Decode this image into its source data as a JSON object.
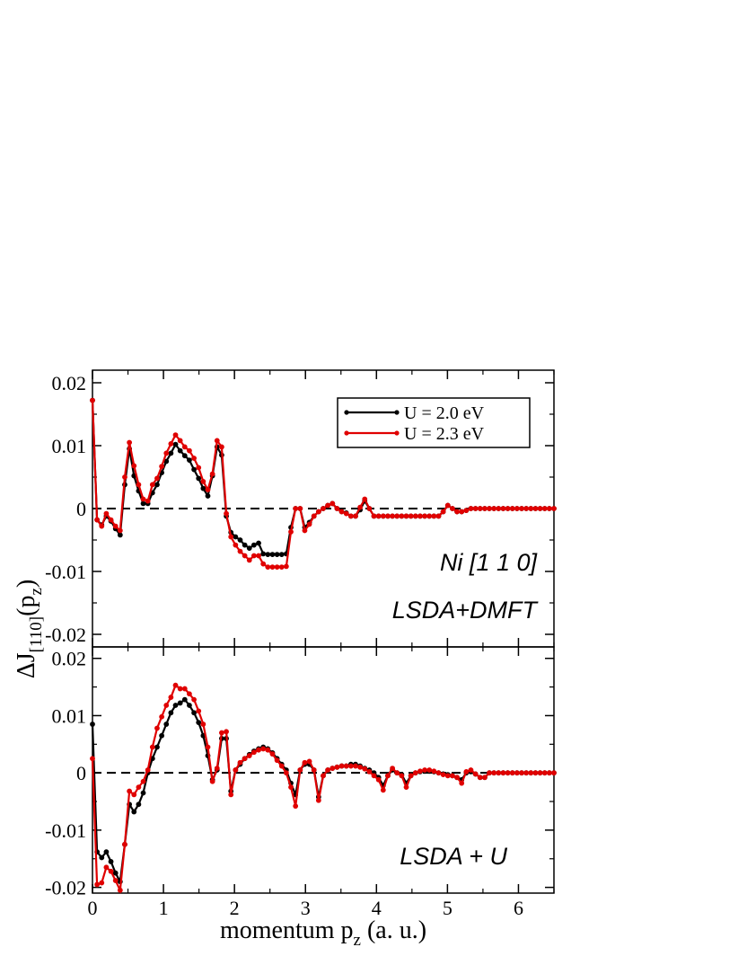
{
  "chart_data": [
    {
      "type": "line",
      "panel": "top",
      "annotations": [
        "Ni [1 1 0]",
        "LSDA+DMFT"
      ],
      "legend": {
        "placement": "top-right",
        "entries": [
          "U = 2.0 eV",
          "U = 2.3 eV"
        ]
      },
      "xlim": [
        0,
        6.5
      ],
      "ylim": [
        -0.022,
        0.022
      ],
      "yticks": [
        "0.02",
        "0.01",
        "0",
        "-0.01",
        "-0.02"
      ],
      "zero_line": "dashed",
      "series": [
        {
          "name": "U = 2.0 eV",
          "color": "#000000",
          "x": [
            0,
            0.065,
            0.13,
            0.195,
            0.26,
            0.325,
            0.39,
            0.455,
            0.52,
            0.585,
            0.65,
            0.715,
            0.78,
            0.845,
            0.91,
            0.975,
            1.04,
            1.105,
            1.17,
            1.235,
            1.3,
            1.365,
            1.43,
            1.495,
            1.56,
            1.625,
            1.69,
            1.755,
            1.82,
            1.885,
            1.95,
            2.015,
            2.08,
            2.145,
            2.21,
            2.275,
            2.34,
            2.405,
            2.47,
            2.535,
            2.6,
            2.665,
            2.73,
            2.795,
            2.86,
            2.925,
            2.99,
            3.055,
            3.12,
            3.185,
            3.25,
            3.315,
            3.38,
            3.445,
            3.51,
            3.575,
            3.64,
            3.705,
            3.77,
            3.835,
            3.9,
            3.965,
            4.03,
            4.095,
            4.16,
            4.225,
            4.29,
            4.355,
            4.42,
            4.485,
            4.55,
            4.615,
            4.68,
            4.745,
            4.81,
            4.875,
            4.94,
            5.005,
            5.07,
            5.135,
            5.2,
            5.265,
            5.33,
            5.395,
            5.46,
            5.525,
            5.59,
            5.655,
            5.72,
            5.785,
            5.85,
            5.915,
            5.98,
            6.045,
            6.11,
            6.175,
            6.24,
            6.305,
            6.37,
            6.435,
            6.5
          ],
          "y": [
            0.0172,
            -0.0018,
            -0.0026,
            -0.0012,
            -0.002,
            -0.0032,
            -0.0042,
            0.0038,
            0.0095,
            0.0052,
            0.0028,
            0.0008,
            0.0008,
            0.0025,
            0.0038,
            0.0057,
            0.0075,
            0.0088,
            0.0102,
            0.0092,
            0.0084,
            0.0077,
            0.0062,
            0.0048,
            0.0032,
            0.002,
            0.0052,
            0.0098,
            0.0085,
            -0.0012,
            -0.0038,
            -0.0045,
            -0.005,
            -0.0058,
            -0.0063,
            -0.0058,
            -0.0055,
            -0.0072,
            -0.0073,
            -0.0073,
            -0.0073,
            -0.0073,
            -0.0072,
            -0.003,
            0.0,
            0.0,
            -0.003,
            -0.0022,
            -0.0012,
            -0.0005,
            0.0,
            0.0005,
            0.0008,
            0.0,
            -0.0005,
            -0.0007,
            -0.0012,
            -0.0012,
            -0.0002,
            0.0012,
            0.0,
            -0.0012,
            -0.0012,
            -0.0012,
            -0.0012,
            -0.0012,
            -0.0012,
            -0.0012,
            -0.0012,
            -0.0012,
            -0.0012,
            -0.0012,
            -0.0012,
            -0.0012,
            -0.0012,
            -0.0012,
            -0.0005,
            0.0005,
            0.0,
            -0.0005,
            -0.0005,
            -0.0003,
            0.0,
            0.0,
            0.0,
            0.0,
            0.0,
            0.0,
            0.0,
            0.0,
            0.0,
            0.0,
            0.0,
            0.0,
            0.0,
            0.0,
            0.0,
            0.0,
            0.0,
            0.0,
            0.0
          ]
        },
        {
          "name": "U = 2.3 eV",
          "color": "#e00000",
          "x": [
            0,
            0.065,
            0.13,
            0.195,
            0.26,
            0.325,
            0.39,
            0.455,
            0.52,
            0.585,
            0.65,
            0.715,
            0.78,
            0.845,
            0.91,
            0.975,
            1.04,
            1.105,
            1.17,
            1.235,
            1.3,
            1.365,
            1.43,
            1.495,
            1.56,
            1.625,
            1.69,
            1.755,
            1.82,
            1.885,
            1.95,
            2.015,
            2.08,
            2.145,
            2.21,
            2.275,
            2.34,
            2.405,
            2.47,
            2.535,
            2.6,
            2.665,
            2.73,
            2.795,
            2.86,
            2.925,
            2.99,
            3.055,
            3.12,
            3.185,
            3.25,
            3.315,
            3.38,
            3.445,
            3.51,
            3.575,
            3.64,
            3.705,
            3.77,
            3.835,
            3.9,
            3.965,
            4.03,
            4.095,
            4.16,
            4.225,
            4.29,
            4.355,
            4.42,
            4.485,
            4.55,
            4.615,
            4.68,
            4.745,
            4.81,
            4.875,
            4.94,
            5.005,
            5.07,
            5.135,
            5.2,
            5.265,
            5.33,
            5.395,
            5.46,
            5.525,
            5.59,
            5.655,
            5.72,
            5.785,
            5.85,
            5.915,
            5.98,
            6.045,
            6.11,
            6.175,
            6.24,
            6.305,
            6.37,
            6.435,
            6.5
          ],
          "y": [
            0.0172,
            -0.0018,
            -0.0028,
            -0.0008,
            -0.0018,
            -0.0028,
            -0.0035,
            0.005,
            0.0105,
            0.0068,
            0.0038,
            0.0015,
            0.0012,
            0.0038,
            0.0048,
            0.0067,
            0.0088,
            0.0103,
            0.0117,
            0.0108,
            0.0098,
            0.0092,
            0.008,
            0.0065,
            0.0043,
            0.003,
            0.0055,
            0.0108,
            0.0098,
            -0.0008,
            -0.0045,
            -0.0058,
            -0.0068,
            -0.0075,
            -0.0082,
            -0.0075,
            -0.0075,
            -0.0088,
            -0.0093,
            -0.0093,
            -0.0093,
            -0.0093,
            -0.0092,
            -0.0037,
            0.0,
            0.0,
            -0.0035,
            -0.0025,
            -0.0012,
            -0.0005,
            0.0,
            0.0005,
            0.0008,
            0.0,
            -0.0005,
            -0.0008,
            -0.0012,
            -0.0012,
            0.0002,
            0.0015,
            0.0,
            -0.0012,
            -0.0012,
            -0.0012,
            -0.0012,
            -0.0012,
            -0.0012,
            -0.0012,
            -0.0012,
            -0.0012,
            -0.0012,
            -0.0012,
            -0.0012,
            -0.0012,
            -0.0012,
            -0.0012,
            -0.0005,
            0.0005,
            0.0,
            -0.0005,
            -0.0005,
            -0.0003,
            0.0,
            0.0,
            0.0,
            0.0,
            0.0,
            0.0,
            0.0,
            0.0,
            0.0,
            0.0,
            0.0,
            0.0,
            0.0,
            0.0,
            0.0,
            0.0,
            0.0,
            0.0,
            0.0
          ]
        }
      ]
    },
    {
      "type": "line",
      "panel": "bottom",
      "annotations": [
        "LSDA + U"
      ],
      "xlim": [
        0,
        6.5
      ],
      "ylim": [
        -0.021,
        0.022
      ],
      "yticks": [
        "0.02",
        "0.01",
        "0",
        "-0.01",
        "-0.02"
      ],
      "xticks": [
        "0",
        "1",
        "2",
        "3",
        "4",
        "5",
        "6"
      ],
      "xlabel": "momentum p_z (a. u.)",
      "zero_line": "dashed",
      "series": [
        {
          "name": "U = 2.0 eV",
          "color": "#000000",
          "x": [
            0,
            0.065,
            0.13,
            0.195,
            0.26,
            0.325,
            0.39,
            0.455,
            0.52,
            0.585,
            0.65,
            0.715,
            0.78,
            0.845,
            0.91,
            0.975,
            1.04,
            1.105,
            1.17,
            1.235,
            1.3,
            1.365,
            1.43,
            1.495,
            1.56,
            1.625,
            1.69,
            1.755,
            1.82,
            1.885,
            1.95,
            2.015,
            2.08,
            2.145,
            2.21,
            2.275,
            2.34,
            2.405,
            2.47,
            2.535,
            2.6,
            2.665,
            2.73,
            2.795,
            2.86,
            2.925,
            2.99,
            3.055,
            3.12,
            3.185,
            3.25,
            3.315,
            3.38,
            3.445,
            3.51,
            3.575,
            3.64,
            3.705,
            3.77,
            3.835,
            3.9,
            3.965,
            4.03,
            4.095,
            4.16,
            4.225,
            4.29,
            4.355,
            4.42,
            4.485,
            4.55,
            4.615,
            4.68,
            4.745,
            4.81,
            4.875,
            4.94,
            5.005,
            5.07,
            5.135,
            5.2,
            5.265,
            5.33,
            5.395,
            5.46,
            5.525,
            5.59,
            5.655,
            5.72,
            5.785,
            5.85,
            5.915,
            5.98,
            6.045,
            6.11,
            6.175,
            6.24,
            6.305,
            6.37,
            6.435,
            6.5
          ],
          "y": [
            0.0085,
            -0.0138,
            -0.0148,
            -0.0138,
            -0.0155,
            -0.0175,
            -0.019,
            -0.0125,
            -0.0055,
            -0.0068,
            -0.0055,
            -0.0035,
            0.0,
            0.0025,
            0.0045,
            0.0065,
            0.0085,
            0.0105,
            0.0118,
            0.0122,
            0.0128,
            0.0118,
            0.0105,
            0.0088,
            0.0065,
            0.003,
            -0.0012,
            0.0005,
            0.006,
            0.006,
            -0.0032,
            0.0005,
            0.0015,
            0.0025,
            0.0032,
            0.0038,
            0.0042,
            0.0045,
            0.0042,
            0.0035,
            0.0025,
            0.0015,
            0.0005,
            -0.0018,
            -0.0038,
            0.0005,
            0.0015,
            0.0015,
            0.0005,
            -0.0042,
            -0.0005,
            0.0005,
            0.0008,
            0.001,
            0.0012,
            0.0012,
            0.0015,
            0.0015,
            0.0012,
            0.0008,
            0.0005,
            0.0,
            -0.0008,
            -0.0022,
            -0.0005,
            0.0005,
            0.0,
            -0.0003,
            -0.0018,
            -0.0005,
            0.0,
            0.0002,
            0.0003,
            0.0003,
            0.0002,
            0.0,
            -0.0002,
            -0.0003,
            -0.0005,
            -0.0008,
            -0.0012,
            0.0,
            0.0002,
            -0.0002,
            -0.0008,
            -0.0008,
            0.0,
            0.0,
            0.0,
            0.0,
            0.0,
            0.0,
            0.0,
            0.0,
            0.0,
            0.0,
            0.0,
            0.0,
            0.0,
            0.0,
            0.0
          ]
        },
        {
          "name": "U = 2.3 eV",
          "color": "#e00000",
          "x": [
            0,
            0.065,
            0.13,
            0.195,
            0.26,
            0.325,
            0.39,
            0.455,
            0.52,
            0.585,
            0.65,
            0.715,
            0.78,
            0.845,
            0.91,
            0.975,
            1.04,
            1.105,
            1.17,
            1.235,
            1.3,
            1.365,
            1.43,
            1.495,
            1.56,
            1.625,
            1.69,
            1.755,
            1.82,
            1.885,
            1.95,
            2.015,
            2.08,
            2.145,
            2.21,
            2.275,
            2.34,
            2.405,
            2.47,
            2.535,
            2.6,
            2.665,
            2.73,
            2.795,
            2.86,
            2.925,
            2.99,
            3.055,
            3.12,
            3.185,
            3.25,
            3.315,
            3.38,
            3.445,
            3.51,
            3.575,
            3.64,
            3.705,
            3.77,
            3.835,
            3.9,
            3.965,
            4.03,
            4.095,
            4.16,
            4.225,
            4.29,
            4.355,
            4.42,
            4.485,
            4.55,
            4.615,
            4.68,
            4.745,
            4.81,
            4.875,
            4.94,
            5.005,
            5.07,
            5.135,
            5.2,
            5.265,
            5.33,
            5.395,
            5.46,
            5.525,
            5.59,
            5.655,
            5.72,
            5.785,
            5.85,
            5.915,
            5.98,
            6.045,
            6.11,
            6.175,
            6.24,
            6.305,
            6.37,
            6.435,
            6.5
          ],
          "y": [
            0.0025,
            -0.0195,
            -0.0192,
            -0.0165,
            -0.0172,
            -0.0188,
            -0.0205,
            -0.0125,
            -0.0032,
            -0.0038,
            -0.0025,
            -0.0015,
            0.0005,
            0.0045,
            0.0078,
            0.0098,
            0.0118,
            0.0132,
            0.0153,
            0.0147,
            0.0147,
            0.0138,
            0.0128,
            0.0108,
            0.0085,
            0.0045,
            -0.0015,
            0.0008,
            0.007,
            0.0072,
            -0.0038,
            0.0005,
            0.0018,
            0.0025,
            0.003,
            0.0036,
            0.004,
            0.0042,
            0.004,
            0.0033,
            0.0022,
            0.0012,
            0.0,
            -0.0025,
            -0.0058,
            0.0005,
            0.0018,
            0.002,
            0.0005,
            -0.0048,
            -0.0005,
            0.0005,
            0.0008,
            0.001,
            0.0012,
            0.0012,
            0.0012,
            0.0012,
            0.001,
            0.0007,
            0.0002,
            -0.0005,
            -0.0012,
            -0.003,
            -0.0005,
            0.0008,
            0.0,
            -0.0005,
            -0.0025,
            -0.0005,
            0.0,
            0.0003,
            0.0005,
            0.0005,
            0.0003,
            0.0,
            -0.0003,
            -0.0005,
            -0.0005,
            -0.0008,
            -0.0018,
            0.0002,
            0.0005,
            -0.0002,
            -0.0008,
            -0.0008,
            0.0,
            0.0,
            0.0,
            0.0,
            0.0,
            0.0,
            0.0,
            0.0,
            0.0,
            0.0,
            0.0,
            0.0,
            0.0,
            0.0,
            0.0
          ]
        }
      ]
    }
  ],
  "ylabel": {
    "main": "ΔJ",
    "sub1": "[110]",
    "mid": "(p",
    "sub2": "z",
    "end": ")"
  },
  "xlabel": {
    "main": "momentum p",
    "sub": "z",
    "end": " (a. u.)"
  }
}
